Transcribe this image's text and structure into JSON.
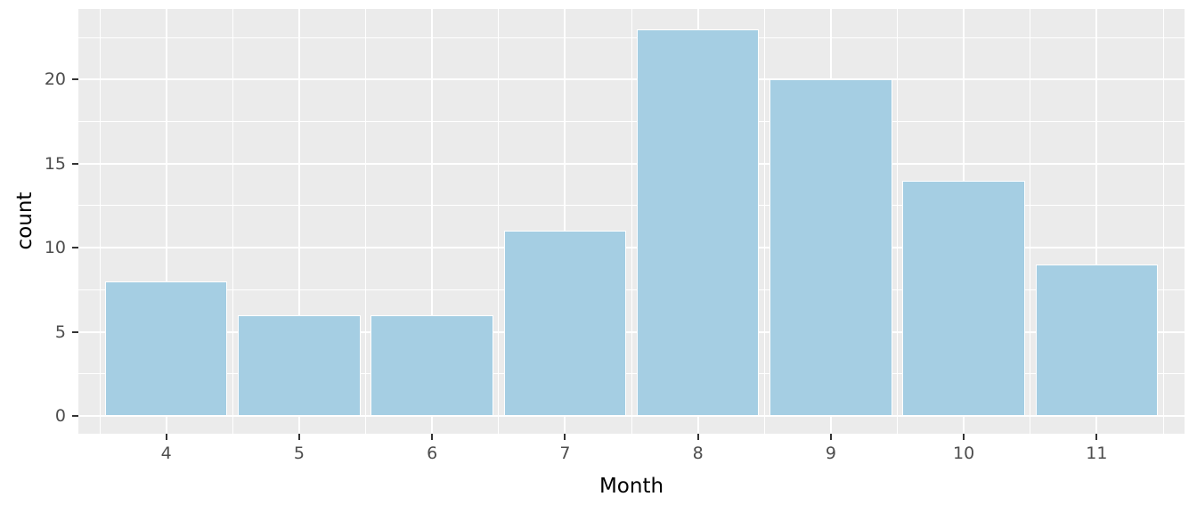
{
  "chart_data": {
    "type": "bar",
    "categories": [
      "4",
      "5",
      "6",
      "7",
      "8",
      "9",
      "10",
      "11"
    ],
    "values": [
      8,
      6,
      6,
      11,
      23,
      20,
      14,
      9
    ],
    "title": "",
    "xlabel": "Month",
    "ylabel": "count",
    "ylim": [
      0,
      24.2
    ],
    "yticks": [
      0,
      5,
      10,
      15,
      20
    ],
    "yticks_minor": [
      2.5,
      7.5,
      12.5,
      17.5,
      22.5
    ],
    "grid": "major-and-minor",
    "legend": "none",
    "colors": {
      "bar_fill": "#A5CEE3",
      "bar_border": "#FFFFFF",
      "panel_background": "#EBEBEB",
      "gridline": "#FFFFFF",
      "tick_text": "#4D4D4D",
      "axis_title_text": "#000000",
      "tick_mark": "#333333"
    }
  }
}
